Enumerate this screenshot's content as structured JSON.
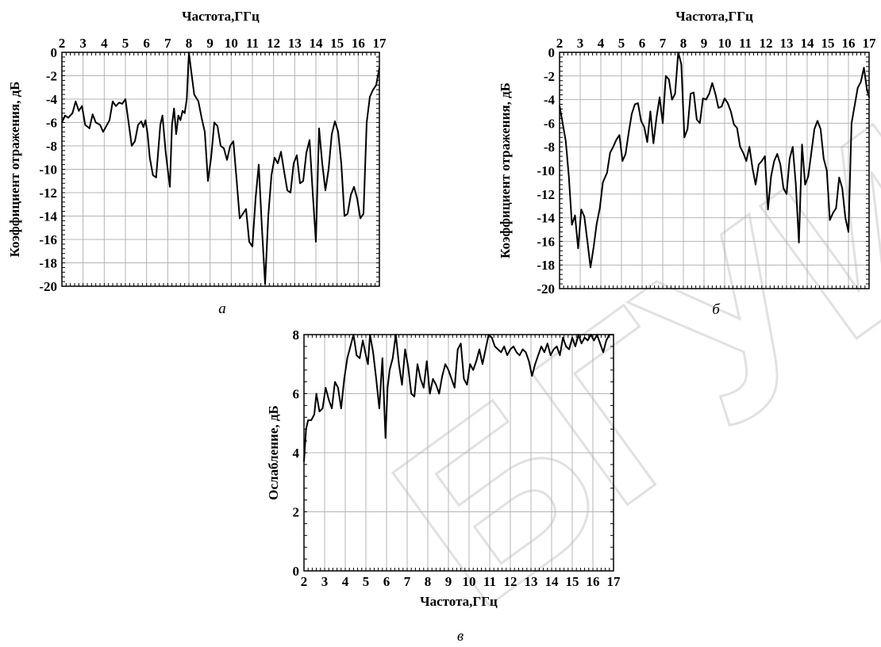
{
  "watermark": "БГУИР",
  "chart_data": [
    {
      "id": "a",
      "type": "line",
      "panel_label": "а",
      "xlabel": "Частота,ГГц",
      "xlabel_position": "top",
      "ylabel": "Коэффициент отражения, дБ",
      "xlim": [
        2,
        17
      ],
      "ylim": [
        -20,
        0
      ],
      "xticks": [
        2,
        3,
        4,
        5,
        6,
        7,
        8,
        9,
        10,
        11,
        12,
        13,
        14,
        15,
        16,
        17
      ],
      "yticks": [
        0,
        -2,
        -4,
        -6,
        -8,
        -10,
        -12,
        -14,
        -16,
        -18,
        -20
      ],
      "grid": true,
      "series": [
        {
          "color": "#000000",
          "x": [
            2.0,
            2.15,
            2.3,
            2.5,
            2.65,
            2.8,
            2.95,
            3.1,
            3.3,
            3.45,
            3.6,
            3.8,
            3.95,
            4.1,
            4.25,
            4.4,
            4.55,
            4.7,
            4.85,
            5.0,
            5.15,
            5.3,
            5.45,
            5.6,
            5.75,
            5.85,
            5.95,
            6.05,
            6.15,
            6.3,
            6.45,
            6.55,
            6.65,
            6.75,
            6.9,
            7.0,
            7.1,
            7.2,
            7.3,
            7.4,
            7.5,
            7.6,
            7.7,
            7.8,
            7.9,
            8.0,
            8.1,
            8.25,
            8.45,
            8.6,
            8.75,
            8.9,
            9.05,
            9.2,
            9.35,
            9.5,
            9.65,
            9.8,
            9.95,
            10.1,
            10.25,
            10.4,
            10.55,
            10.7,
            10.85,
            11.0,
            11.15,
            11.3,
            11.45,
            11.6,
            11.75,
            11.9,
            12.05,
            12.2,
            12.35,
            12.5,
            12.65,
            12.8,
            12.95,
            13.1,
            13.25,
            13.4,
            13.55,
            13.7,
            13.85,
            14.0,
            14.15,
            14.3,
            14.45,
            14.6,
            14.75,
            14.9,
            15.05,
            15.2,
            15.35,
            15.5,
            15.65,
            15.8,
            15.95,
            16.1,
            16.25,
            16.4,
            16.55,
            16.7,
            16.85,
            17.0
          ],
          "y": [
            -6.0,
            -5.4,
            -5.6,
            -5.2,
            -4.2,
            -5.0,
            -4.6,
            -6.2,
            -6.5,
            -5.3,
            -6.0,
            -6.2,
            -6.8,
            -6.3,
            -5.8,
            -4.2,
            -4.6,
            -4.3,
            -4.4,
            -4.0,
            -6.0,
            -8.0,
            -7.6,
            -6.2,
            -5.9,
            -6.4,
            -5.8,
            -7.0,
            -9.0,
            -10.5,
            -10.7,
            -8.5,
            -6.2,
            -5.4,
            -8.5,
            -10.0,
            -11.5,
            -6.2,
            -4.8,
            -7.0,
            -5.4,
            -5.8,
            -5.0,
            -5.2,
            -4.0,
            0.0,
            -1.5,
            -3.6,
            -4.2,
            -5.6,
            -6.8,
            -11.0,
            -9.0,
            -6.0,
            -6.3,
            -8.0,
            -8.2,
            -9.2,
            -8.0,
            -7.6,
            -10.8,
            -14.2,
            -13.8,
            -13.4,
            -16.2,
            -16.6,
            -12.5,
            -9.6,
            -15.0,
            -19.8,
            -14.0,
            -10.5,
            -9.0,
            -9.5,
            -8.5,
            -10.2,
            -11.8,
            -12.0,
            -9.5,
            -8.8,
            -11.2,
            -11.0,
            -8.6,
            -7.5,
            -12.0,
            -16.2,
            -6.5,
            -9.5,
            -11.8,
            -10.0,
            -7.0,
            -5.9,
            -6.8,
            -9.5,
            -14.0,
            -13.8,
            -12.2,
            -11.5,
            -12.5,
            -14.2,
            -13.8,
            -6.0,
            -3.8,
            -3.2,
            -2.8,
            -1.3
          ]
        }
      ]
    },
    {
      "id": "b",
      "type": "line",
      "panel_label": "б",
      "xlabel": "Частота,ГГц",
      "xlabel_position": "top",
      "ylabel": "Коэффициент отражения, дБ",
      "xlim": [
        2,
        17
      ],
      "ylim": [
        -20,
        0
      ],
      "xticks": [
        2,
        3,
        4,
        5,
        6,
        7,
        8,
        9,
        10,
        11,
        12,
        13,
        14,
        15,
        16,
        17
      ],
      "yticks": [
        0,
        -2,
        -4,
        -6,
        -8,
        -10,
        -12,
        -14,
        -16,
        -18,
        -20
      ],
      "grid": true,
      "series": [
        {
          "color": "#000000",
          "x": [
            2.0,
            2.15,
            2.3,
            2.45,
            2.6,
            2.75,
            2.9,
            3.05,
            3.2,
            3.35,
            3.5,
            3.65,
            3.8,
            3.95,
            4.1,
            4.3,
            4.45,
            4.6,
            4.75,
            4.9,
            5.05,
            5.2,
            5.35,
            5.5,
            5.65,
            5.8,
            5.95,
            6.1,
            6.25,
            6.4,
            6.55,
            6.7,
            6.85,
            7.0,
            7.15,
            7.3,
            7.45,
            7.6,
            7.75,
            7.9,
            8.05,
            8.2,
            8.35,
            8.5,
            8.65,
            8.8,
            8.95,
            9.1,
            9.25,
            9.4,
            9.55,
            9.7,
            9.85,
            10.0,
            10.15,
            10.3,
            10.45,
            10.6,
            10.75,
            10.9,
            11.05,
            11.2,
            11.35,
            11.5,
            11.65,
            11.8,
            11.95,
            12.1,
            12.25,
            12.4,
            12.55,
            12.7,
            12.85,
            13.0,
            13.15,
            13.3,
            13.45,
            13.6,
            13.75,
            13.9,
            14.05,
            14.2,
            14.35,
            14.5,
            14.65,
            14.8,
            14.95,
            15.1,
            15.25,
            15.4,
            15.55,
            15.7,
            15.85,
            16.0,
            16.15,
            16.3,
            16.45,
            16.6,
            16.75,
            16.9,
            17.0
          ],
          "y": [
            -4.5,
            -6.0,
            -7.5,
            -10.5,
            -14.6,
            -13.8,
            -16.6,
            -13.3,
            -13.9,
            -16.0,
            -18.2,
            -16.5,
            -14.5,
            -13.2,
            -11.0,
            -10.2,
            -8.5,
            -8.0,
            -7.4,
            -7.0,
            -9.2,
            -8.6,
            -6.8,
            -5.2,
            -4.4,
            -4.3,
            -5.8,
            -6.3,
            -7.6,
            -5.0,
            -7.7,
            -5.5,
            -3.8,
            -6.0,
            -2.0,
            -2.3,
            -4.0,
            -3.5,
            0.0,
            -1.0,
            -7.2,
            -6.5,
            -3.5,
            -3.4,
            -5.7,
            -6.0,
            -3.9,
            -4.0,
            -3.5,
            -2.6,
            -3.5,
            -4.7,
            -4.6,
            -3.9,
            -4.3,
            -5.0,
            -6.1,
            -6.4,
            -8.0,
            -8.5,
            -9.2,
            -8.0,
            -9.8,
            -11.2,
            -9.5,
            -9.2,
            -8.8,
            -13.3,
            -10.5,
            -9.2,
            -8.6,
            -9.5,
            -11.5,
            -12.0,
            -9.0,
            -8.0,
            -11.2,
            -16.1,
            -7.8,
            -11.2,
            -10.5,
            -8.5,
            -6.5,
            -5.8,
            -6.5,
            -9.0,
            -10.0,
            -14.2,
            -13.6,
            -13.2,
            -10.6,
            -11.5,
            -14.0,
            -15.2,
            -6.0,
            -4.5,
            -3.0,
            -2.5,
            -1.3,
            -3.2,
            -3.8
          ]
        }
      ]
    },
    {
      "id": "c",
      "type": "line",
      "panel_label": "в",
      "xlabel": "Частота,ГГц",
      "xlabel_position": "bottom",
      "ylabel": "Ослабление, дБ",
      "xlim": [
        2,
        17
      ],
      "ylim": [
        0,
        8
      ],
      "xticks": [
        2,
        3,
        4,
        5,
        6,
        7,
        8,
        9,
        10,
        11,
        12,
        13,
        14,
        15,
        16,
        17
      ],
      "yticks": [
        0,
        2,
        4,
        6,
        8
      ],
      "grid": true,
      "series": [
        {
          "color": "#000000",
          "x": [
            2.0,
            2.1,
            2.2,
            2.35,
            2.5,
            2.6,
            2.75,
            2.9,
            3.05,
            3.2,
            3.35,
            3.5,
            3.65,
            3.8,
            3.95,
            4.1,
            4.25,
            4.4,
            4.55,
            4.7,
            4.85,
            5.0,
            5.1,
            5.2,
            5.35,
            5.5,
            5.65,
            5.8,
            5.95,
            6.05,
            6.15,
            6.3,
            6.45,
            6.6,
            6.75,
            6.9,
            7.05,
            7.2,
            7.35,
            7.5,
            7.65,
            7.8,
            7.95,
            8.1,
            8.25,
            8.4,
            8.55,
            8.7,
            8.85,
            9.0,
            9.15,
            9.3,
            9.45,
            9.6,
            9.75,
            9.9,
            10.05,
            10.2,
            10.35,
            10.5,
            10.65,
            10.8,
            10.95,
            11.1,
            11.25,
            11.4,
            11.55,
            11.7,
            11.85,
            12.0,
            12.15,
            12.3,
            12.45,
            12.6,
            12.75,
            12.9,
            13.05,
            13.2,
            13.35,
            13.5,
            13.65,
            13.8,
            13.95,
            14.1,
            14.25,
            14.4,
            14.55,
            14.7,
            14.85,
            15.0,
            15.15,
            15.3,
            15.45,
            15.6,
            15.75,
            15.9,
            16.05,
            16.2,
            16.35,
            16.5,
            16.65,
            16.8,
            17.0
          ],
          "y": [
            3.7,
            4.8,
            5.1,
            5.1,
            5.3,
            6.0,
            5.4,
            5.5,
            6.2,
            5.8,
            5.5,
            6.4,
            6.2,
            5.5,
            6.5,
            7.2,
            7.6,
            8.0,
            7.3,
            7.2,
            7.8,
            7.3,
            7.0,
            8.0,
            7.4,
            6.5,
            5.5,
            7.2,
            4.5,
            6.2,
            6.8,
            7.2,
            8.0,
            7.0,
            6.3,
            7.5,
            6.9,
            6.0,
            5.9,
            7.0,
            6.5,
            6.2,
            7.1,
            6.0,
            6.5,
            6.3,
            6.0,
            6.6,
            7.0,
            6.8,
            6.5,
            6.2,
            7.5,
            7.7,
            6.5,
            6.3,
            7.0,
            6.8,
            7.1,
            7.5,
            7.0,
            7.5,
            8.0,
            7.9,
            7.6,
            7.5,
            7.4,
            7.6,
            7.3,
            7.5,
            7.6,
            7.4,
            7.3,
            7.5,
            7.4,
            7.1,
            6.6,
            7.0,
            7.3,
            7.6,
            7.4,
            7.7,
            7.3,
            7.5,
            7.6,
            7.3,
            7.9,
            7.6,
            7.5,
            7.9,
            7.6,
            8.0,
            7.7,
            7.9,
            7.8,
            8.0,
            7.8,
            8.0,
            7.7,
            7.4,
            7.8,
            8.0,
            8.0
          ]
        }
      ]
    }
  ]
}
